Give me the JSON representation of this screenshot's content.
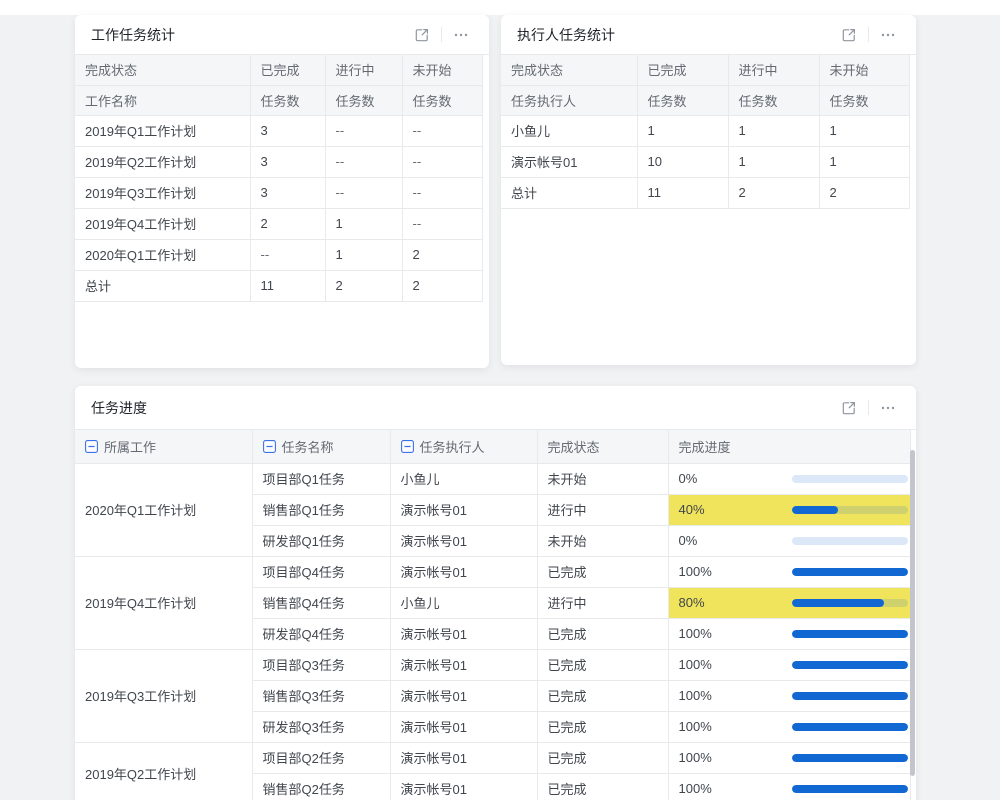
{
  "colors": {
    "accent-blue": "#1268d2",
    "hl-yellow": "#f0e45d",
    "collapse-blue": "#3b70e8",
    "scrollbar": "#c2c6cc"
  },
  "panels": {
    "work_stats": {
      "title": "工作任务统计",
      "header_row1": [
        "完成状态",
        "已完成",
        "进行中",
        "未开始"
      ],
      "header_row2": [
        "工作名称",
        "任务数",
        "任务数",
        "任务数"
      ],
      "rows": [
        {
          "name": "2019年Q1工作计划",
          "values": [
            "3",
            "--",
            "--"
          ]
        },
        {
          "name": "2019年Q2工作计划",
          "values": [
            "3",
            "--",
            "--"
          ]
        },
        {
          "name": "2019年Q3工作计划",
          "values": [
            "3",
            "--",
            "--"
          ]
        },
        {
          "name": "2019年Q4工作计划",
          "values": [
            "2",
            "1",
            "--"
          ]
        },
        {
          "name": "2020年Q1工作计划",
          "values": [
            "--",
            "1",
            "2"
          ]
        },
        {
          "name": "总计",
          "values": [
            "11",
            "2",
            "2"
          ]
        }
      ]
    },
    "executor_stats": {
      "title": "执行人任务统计",
      "header_row1": [
        "完成状态",
        "已完成",
        "进行中",
        "未开始"
      ],
      "header_row2": [
        "任务执行人",
        "任务数",
        "任务数",
        "任务数"
      ],
      "rows": [
        {
          "name": "小鱼儿",
          "values": [
            "1",
            "1",
            "1"
          ]
        },
        {
          "name": "演示帐号01",
          "values": [
            "10",
            "1",
            "1"
          ]
        },
        {
          "name": "总计",
          "values": [
            "11",
            "2",
            "2"
          ]
        }
      ]
    },
    "task_progress": {
      "title": "任务进度",
      "columns": [
        {
          "label": "所属工作",
          "collapsible": true
        },
        {
          "label": "任务名称",
          "collapsible": true
        },
        {
          "label": "任务执行人",
          "collapsible": true
        },
        {
          "label": "完成状态",
          "collapsible": false
        },
        {
          "label": "完成进度",
          "collapsible": false
        }
      ],
      "groups": [
        {
          "work": "2020年Q1工作计划",
          "tasks": [
            {
              "task": "项目部Q1任务",
              "executor": "小鱼儿",
              "status": "未开始",
              "progress": 0,
              "progress_label": "0%",
              "highlight": false
            },
            {
              "task": "销售部Q1任务",
              "executor": "演示帐号01",
              "status": "进行中",
              "progress": 40,
              "progress_label": "40%",
              "highlight": true
            },
            {
              "task": "研发部Q1任务",
              "executor": "演示帐号01",
              "status": "未开始",
              "progress": 0,
              "progress_label": "0%",
              "highlight": false
            }
          ]
        },
        {
          "work": "2019年Q4工作计划",
          "tasks": [
            {
              "task": "项目部Q4任务",
              "executor": "演示帐号01",
              "status": "已完成",
              "progress": 100,
              "progress_label": "100%",
              "highlight": false
            },
            {
              "task": "销售部Q4任务",
              "executor": "小鱼儿",
              "status": "进行中",
              "progress": 80,
              "progress_label": "80%",
              "highlight": true
            },
            {
              "task": "研发部Q4任务",
              "executor": "演示帐号01",
              "status": "已完成",
              "progress": 100,
              "progress_label": "100%",
              "highlight": false
            }
          ]
        },
        {
          "work": "2019年Q3工作计划",
          "tasks": [
            {
              "task": "项目部Q3任务",
              "executor": "演示帐号01",
              "status": "已完成",
              "progress": 100,
              "progress_label": "100%",
              "highlight": false
            },
            {
              "task": "销售部Q3任务",
              "executor": "演示帐号01",
              "status": "已完成",
              "progress": 100,
              "progress_label": "100%",
              "highlight": false
            },
            {
              "task": "研发部Q3任务",
              "executor": "演示帐号01",
              "status": "已完成",
              "progress": 100,
              "progress_label": "100%",
              "highlight": false
            }
          ]
        },
        {
          "work": "2019年Q2工作计划",
          "tasks": [
            {
              "task": "项目部Q2任务",
              "executor": "演示帐号01",
              "status": "已完成",
              "progress": 100,
              "progress_label": "100%",
              "highlight": false
            },
            {
              "task": "销售部Q2任务",
              "executor": "演示帐号01",
              "status": "已完成",
              "progress": 100,
              "progress_label": "100%",
              "highlight": false
            }
          ]
        }
      ]
    }
  },
  "icons": {
    "expand": "expand-icon",
    "more": "more-menu-icon",
    "collapse": "collapse-minus-icon"
  }
}
